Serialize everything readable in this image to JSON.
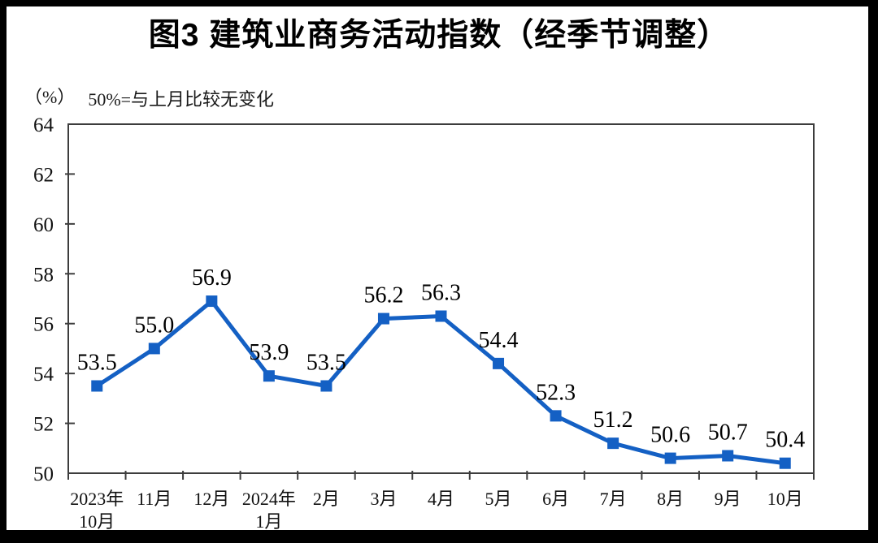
{
  "title": "图3 建筑业商务活动指数（经季节调整）",
  "subtitle": {
    "unit": "（%）",
    "note": "50%=与上月比较无变化"
  },
  "chart_data": {
    "type": "line",
    "title": "图3 建筑业商务活动指数（经季节调整）",
    "unit_label": "（%）",
    "annotation": "50%=与上月比较无变化",
    "categories": [
      "2023年\n10月",
      "11月",
      "12月",
      "2024年\n1月",
      "2月",
      "3月",
      "4月",
      "5月",
      "6月",
      "7月",
      "8月",
      "9月",
      "10月"
    ],
    "values": [
      53.5,
      55.0,
      56.9,
      53.9,
      53.5,
      56.2,
      56.3,
      54.4,
      52.3,
      51.2,
      50.6,
      50.7,
      50.4
    ],
    "labels": [
      "53.5",
      "55.0",
      "56.9",
      "53.9",
      "53.5",
      "56.2",
      "56.3",
      "54.4",
      "52.3",
      "51.2",
      "50.6",
      "50.7",
      "50.4"
    ],
    "ylim": [
      50,
      64
    ],
    "yticks": [
      50,
      52,
      54,
      56,
      58,
      60,
      62,
      64
    ],
    "xlabel": "",
    "ylabel": "",
    "grid": false,
    "legend": "none",
    "line_color": "#1460C4",
    "marker": "square",
    "axis_color": "#3d3d3d",
    "text_color": "#000000"
  }
}
